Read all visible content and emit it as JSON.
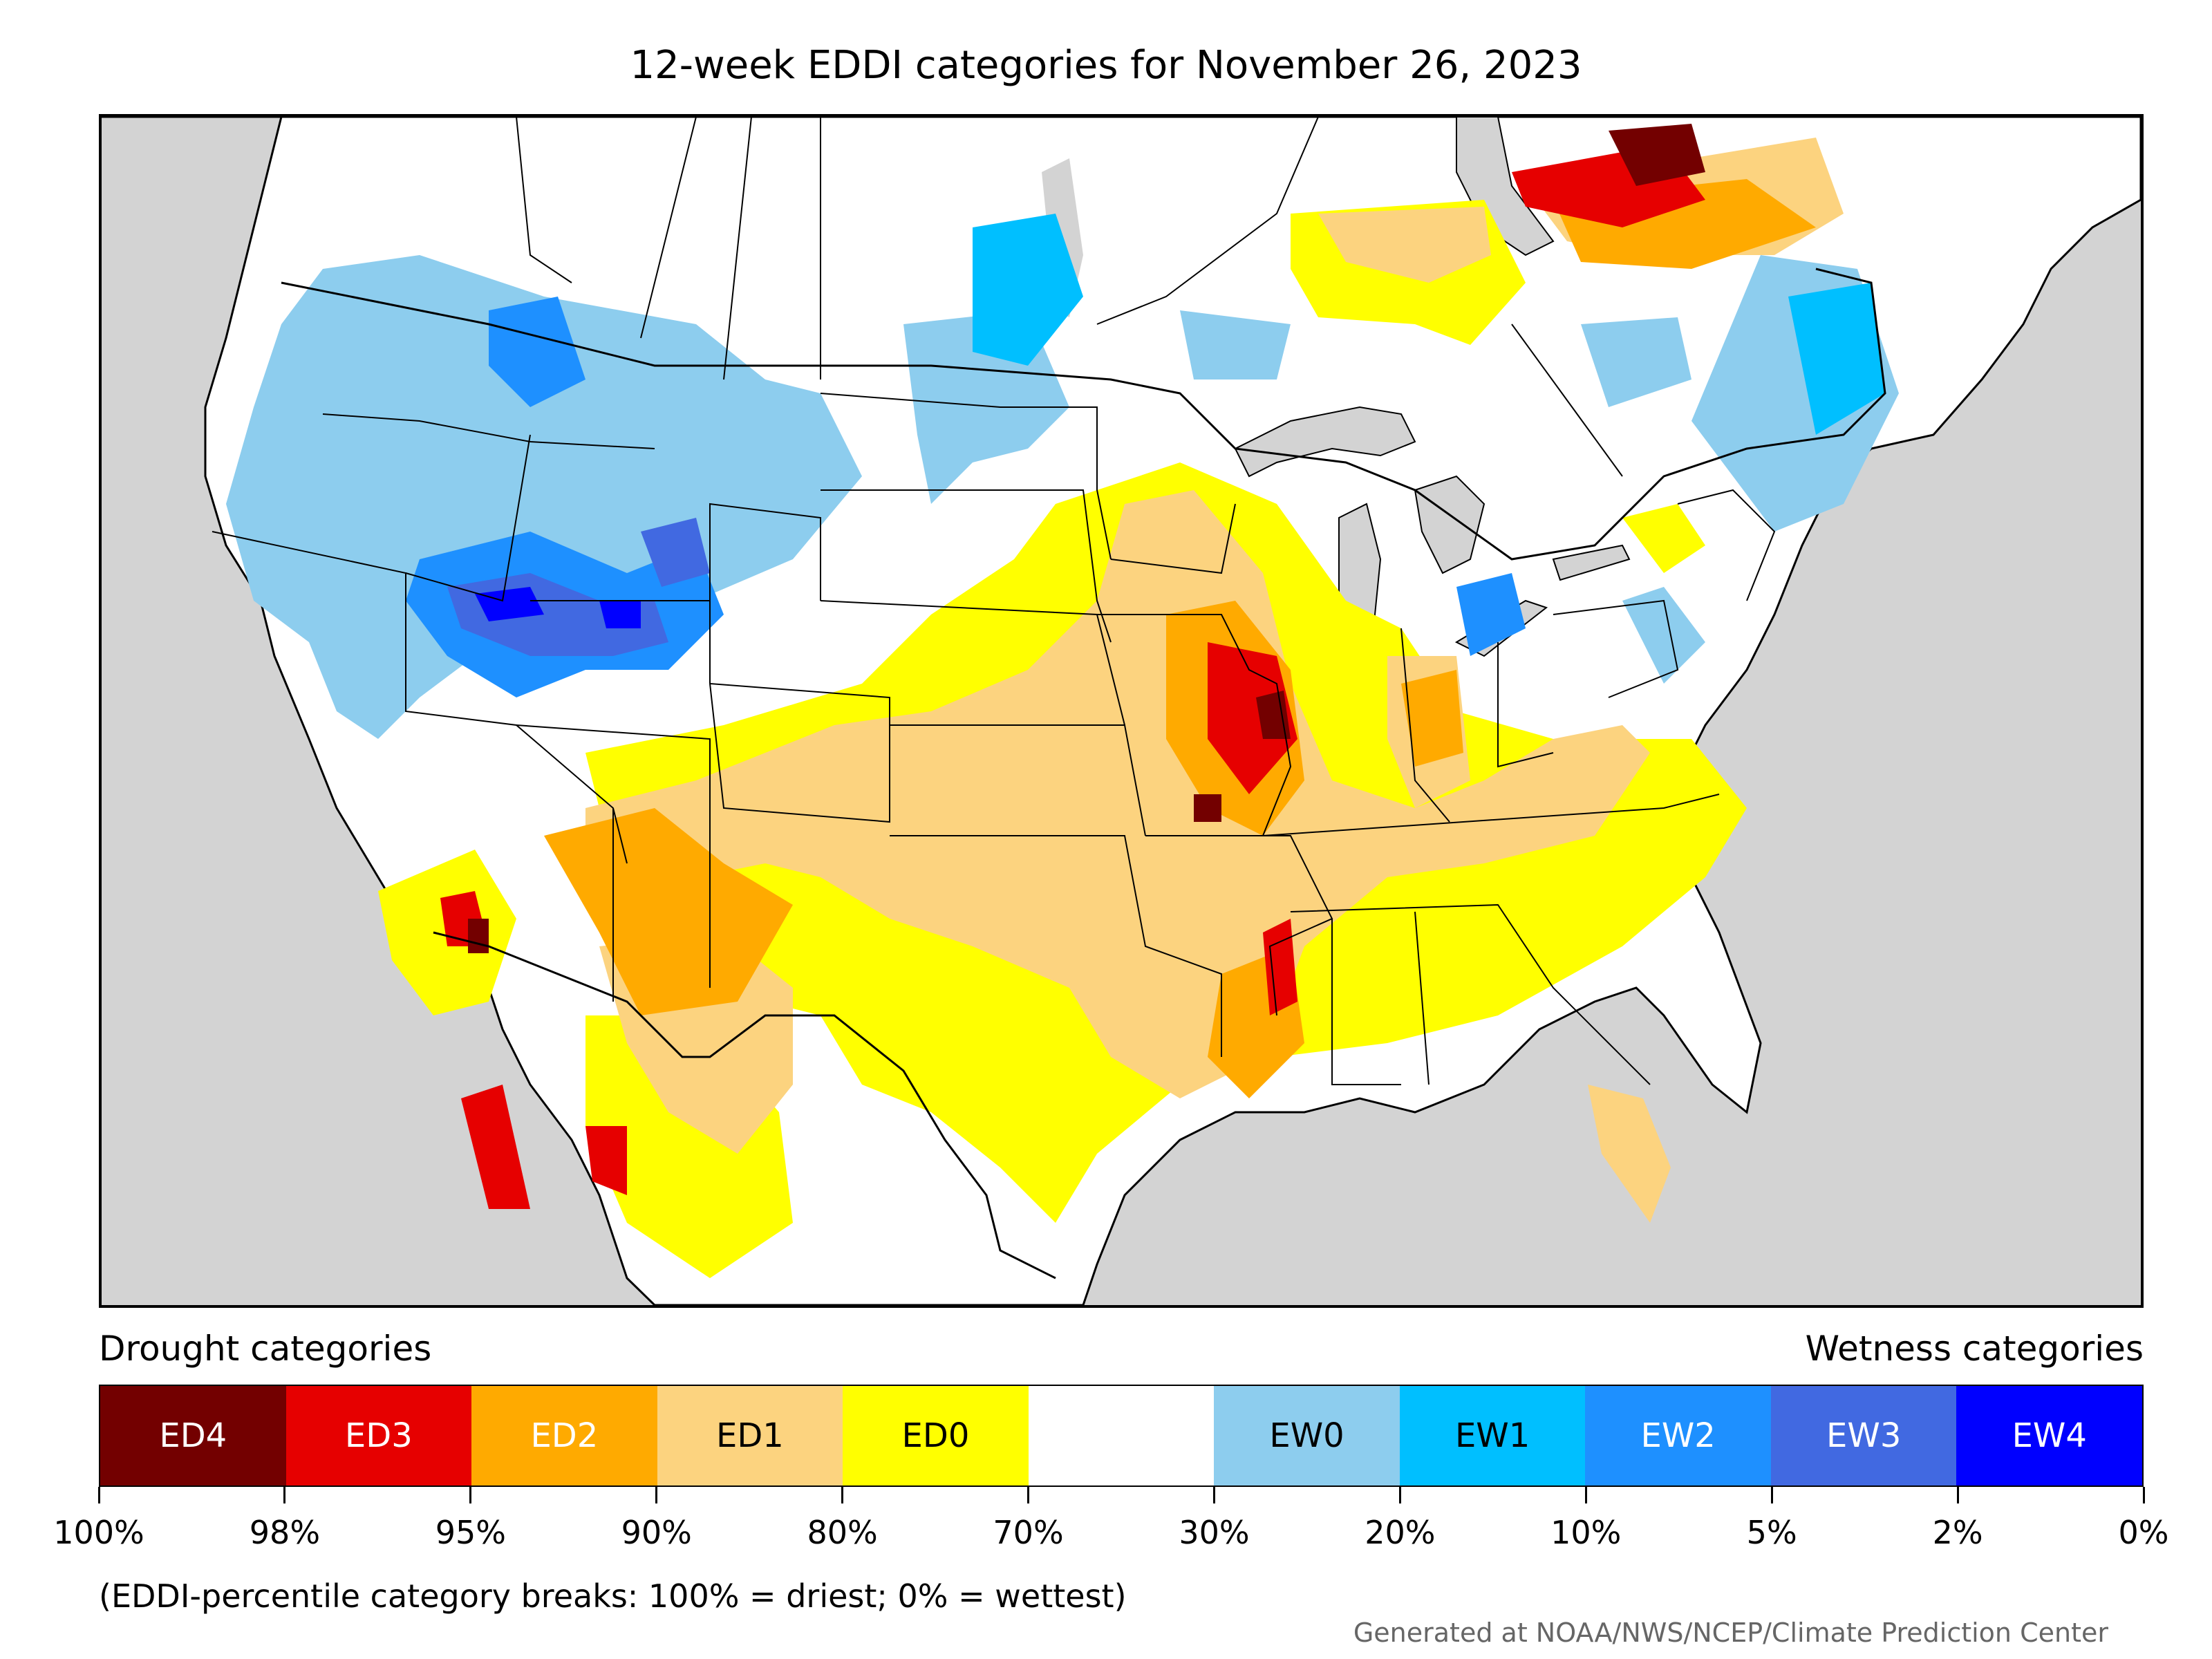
{
  "title": "12-week EDDI categories for November 26, 2023",
  "legend": {
    "drought_label": "Drought categories",
    "wetness_label": "Wetness categories",
    "categories": [
      {
        "label": "ED4",
        "color": "#730000",
        "text_color": "#ffffff"
      },
      {
        "label": "ED3",
        "color": "#e60000",
        "text_color": "#ffffff"
      },
      {
        "label": "ED2",
        "color": "#ffaa00",
        "text_color": "#ffffff"
      },
      {
        "label": "ED1",
        "color": "#fcd37f",
        "text_color": "#000000"
      },
      {
        "label": "ED0",
        "color": "#ffff00",
        "text_color": "#000000"
      },
      {
        "label": "",
        "color": "#ffffff",
        "text_color": "#000000"
      },
      {
        "label": "EW0",
        "color": "#8dcdee",
        "text_color": "#000000"
      },
      {
        "label": "EW1",
        "color": "#00bfff",
        "text_color": "#000000"
      },
      {
        "label": "EW2",
        "color": "#1e90ff",
        "text_color": "#ffffff"
      },
      {
        "label": "EW3",
        "color": "#4169e1",
        "text_color": "#ffffff"
      },
      {
        "label": "EW4",
        "color": "#0000ff",
        "text_color": "#ffffff"
      }
    ],
    "breaks": [
      "100%",
      "98%",
      "95%",
      "90%",
      "80%",
      "70%",
      "30%",
      "20%",
      "10%",
      "5%",
      "2%",
      "0%"
    ]
  },
  "note": "(EDDI-percentile category breaks: 100% = driest; 0% = wettest)",
  "credit": "Generated at NOAA/NWS/NCEP/Climate Prediction Center",
  "map": {
    "background_color": "#d3d3d3",
    "land_color": "#ffffff",
    "border_color": "#000000"
  }
}
